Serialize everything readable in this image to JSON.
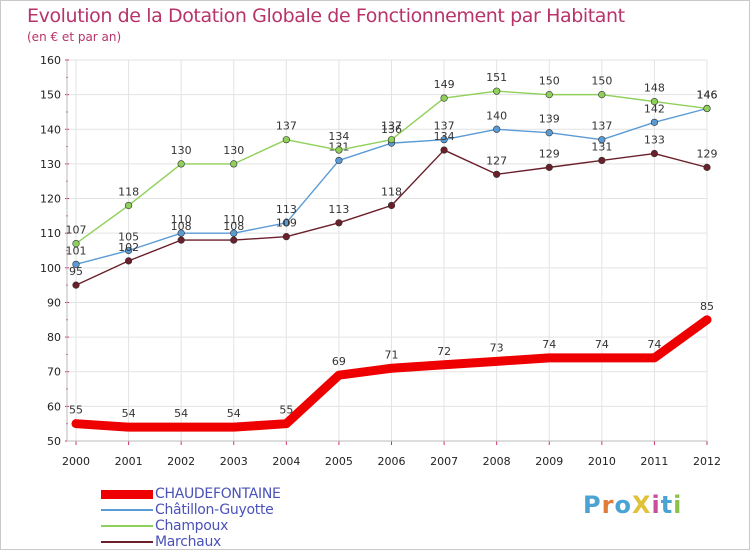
{
  "header": {
    "title": "Evolution de la Dotation Globale de Fonctionnement par Habitant",
    "subtitle": "(en € et par an)"
  },
  "colors": {
    "title": "#b8336a",
    "legend_text": "#4a52b8",
    "grid": "#e3e3e3",
    "axis_ticks": "#cc3366"
  },
  "logo": {
    "text": "ProXiti",
    "letter_colors": [
      "#4ba3d4",
      "#e07b3a",
      "#4ba3d4",
      "#e0c23a",
      "#c94f9c",
      "#4ba3d4",
      "#8bc34a"
    ]
  },
  "chart_data": {
    "type": "line",
    "title": "Evolution de la Dotation Globale de Fonctionnement par Habitant",
    "subtitle": "(en € et par an)",
    "xlabel": "",
    "ylabel": "",
    "x": [
      "2000",
      "2001",
      "2002",
      "2003",
      "2004",
      "2005",
      "2006",
      "2007",
      "2008",
      "2009",
      "2010",
      "2011",
      "2012"
    ],
    "ylim": [
      50,
      160
    ],
    "yticks": [
      50,
      60,
      70,
      80,
      90,
      100,
      110,
      120,
      130,
      140,
      150,
      160
    ],
    "grid": true,
    "legend_position": "bottom-left",
    "series": [
      {
        "name": "CHAUDEFONTAINE",
        "color": "#ee0000",
        "values": [
          55,
          54,
          54,
          54,
          55,
          69,
          71,
          72,
          73,
          74,
          74,
          74,
          85
        ],
        "bold": true
      },
      {
        "name": "Châtillon-Guyotte",
        "color": "#5b9bd5",
        "values": [
          101,
          105,
          110,
          110,
          113,
          131,
          136,
          137,
          140,
          139,
          137,
          142,
          146
        ]
      },
      {
        "name": "Champoux",
        "color": "#8fd05a",
        "values": [
          107,
          118,
          130,
          130,
          137,
          134,
          137,
          149,
          151,
          150,
          150,
          148,
          146
        ]
      },
      {
        "name": "Marchaux",
        "color": "#6b1f2a",
        "values": [
          95,
          102,
          108,
          108,
          109,
          113,
          118,
          134,
          127,
          129,
          131,
          133,
          129
        ]
      }
    ]
  }
}
